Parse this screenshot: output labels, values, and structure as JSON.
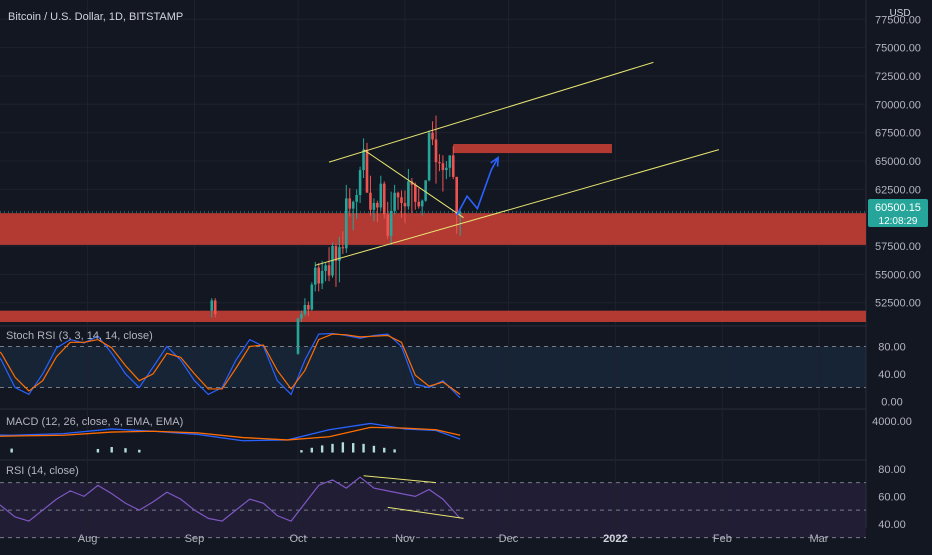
{
  "header": {
    "symbol_title": "Bitcoin / U.S. Dollar, 1D, BITSTAMP"
  },
  "currency_label": "USD",
  "last_price": {
    "value": "60500.15",
    "countdown": "12:08:29",
    "color": "#26a69a"
  },
  "colors": {
    "background": "#131722",
    "grid": "#1e222d",
    "up": "#26a69a",
    "down": "#ef5350",
    "zone": "#b23a33",
    "trendline": "#e8e471",
    "arrow": "#2962ff",
    "k_line": "#2962ff",
    "d_line": "#ff6d00",
    "rsi_line": "#7e57c2",
    "text": "#b2b5be"
  },
  "chart_data": [
    {
      "type": "candlestick",
      "title": "Bitcoin / U.S. Dollar, 1D, BITSTAMP",
      "ylim": [
        50800,
        79200
      ],
      "y_ticks": [
        "77500.00",
        "75000.00",
        "72500.00",
        "70000.00",
        "67500.00",
        "65000.00",
        "62500.00",
        "60000.00",
        "57500.00",
        "55000.00",
        "52500.00"
      ],
      "x_ticks": [
        "Aug",
        "Sep",
        "Oct",
        "Nov",
        "Dec",
        "2022",
        "Feb",
        "Mar"
      ],
      "candles": [
        {
          "date": "2021-09-06",
          "open": 51800,
          "high": 52900,
          "low": 51200,
          "close": 52700
        },
        {
          "date": "2021-09-07",
          "open": 52700,
          "high": 52900,
          "low": 51200,
          "close": 51500
        },
        {
          "date": "2021-10-01",
          "open": 48000,
          "high": 51200,
          "low": 47900,
          "close": 51100
        },
        {
          "date": "2021-10-02",
          "open": 51100,
          "high": 51800,
          "low": 50800,
          "close": 51500
        },
        {
          "date": "2021-10-03",
          "open": 51500,
          "high": 52900,
          "low": 51300,
          "close": 52300
        },
        {
          "date": "2021-10-04",
          "open": 52300,
          "high": 52600,
          "low": 51300,
          "close": 51900
        },
        {
          "date": "2021-10-05",
          "open": 51900,
          "high": 54300,
          "low": 51800,
          "close": 54100
        },
        {
          "date": "2021-10-06",
          "open": 54100,
          "high": 56100,
          "low": 53500,
          "close": 55600
        },
        {
          "date": "2021-10-07",
          "open": 55600,
          "high": 56000,
          "low": 53500,
          "close": 54200
        },
        {
          "date": "2021-10-08",
          "open": 54200,
          "high": 56200,
          "low": 53700,
          "close": 55300
        },
        {
          "date": "2021-10-09",
          "open": 55300,
          "high": 56000,
          "low": 54400,
          "close": 55800
        },
        {
          "date": "2021-10-10",
          "open": 55800,
          "high": 57400,
          "low": 54400,
          "close": 54900
        },
        {
          "date": "2021-10-11",
          "open": 54900,
          "high": 57800,
          "low": 54700,
          "close": 57500
        },
        {
          "date": "2021-10-12",
          "open": 57500,
          "high": 57700,
          "low": 53900,
          "close": 56200
        },
        {
          "date": "2021-10-13",
          "open": 56200,
          "high": 58300,
          "low": 54300,
          "close": 57400
        },
        {
          "date": "2021-10-14",
          "open": 57400,
          "high": 58800,
          "low": 56800,
          "close": 57300
        },
        {
          "date": "2021-10-15",
          "open": 57300,
          "high": 62900,
          "low": 56900,
          "close": 61700
        },
        {
          "date": "2021-10-16",
          "open": 61700,
          "high": 62600,
          "low": 60100,
          "close": 60800
        },
        {
          "date": "2021-10-17",
          "open": 60800,
          "high": 61500,
          "low": 58900,
          "close": 61400
        },
        {
          "date": "2021-10-18",
          "open": 61400,
          "high": 62500,
          "low": 59900,
          "close": 62000
        },
        {
          "date": "2021-10-19",
          "open": 62000,
          "high": 64500,
          "low": 61300,
          "close": 64200
        },
        {
          "date": "2021-10-20",
          "open": 64200,
          "high": 67000,
          "low": 63500,
          "close": 66000
        },
        {
          "date": "2021-10-21",
          "open": 66000,
          "high": 66600,
          "low": 62300,
          "close": 62200
        },
        {
          "date": "2021-10-22",
          "open": 62200,
          "high": 63700,
          "low": 60200,
          "close": 60700
        },
        {
          "date": "2021-10-23",
          "open": 60700,
          "high": 61700,
          "low": 59700,
          "close": 61300
        },
        {
          "date": "2021-10-24",
          "open": 61300,
          "high": 61500,
          "low": 59600,
          "close": 60900
        },
        {
          "date": "2021-10-25",
          "open": 60900,
          "high": 63700,
          "low": 60600,
          "close": 63000
        },
        {
          "date": "2021-10-26",
          "open": 63000,
          "high": 63200,
          "low": 59900,
          "close": 60300
        },
        {
          "date": "2021-10-27",
          "open": 60300,
          "high": 61400,
          "low": 58100,
          "close": 58400
        },
        {
          "date": "2021-10-28",
          "open": 58400,
          "high": 62300,
          "low": 57600,
          "close": 60600
        },
        {
          "date": "2021-10-29",
          "open": 60600,
          "high": 62900,
          "low": 60300,
          "close": 62200
        },
        {
          "date": "2021-10-30",
          "open": 62200,
          "high": 62300,
          "low": 60700,
          "close": 61800
        },
        {
          "date": "2021-10-31",
          "open": 61800,
          "high": 62400,
          "low": 60000,
          "close": 61300
        },
        {
          "date": "2021-11-01",
          "open": 61300,
          "high": 62400,
          "low": 59500,
          "close": 61000
        },
        {
          "date": "2021-11-02",
          "open": 61000,
          "high": 64300,
          "low": 60700,
          "close": 63200
        },
        {
          "date": "2021-11-03",
          "open": 63200,
          "high": 63500,
          "low": 60400,
          "close": 62900
        },
        {
          "date": "2021-11-04",
          "open": 62900,
          "high": 63100,
          "low": 60700,
          "close": 61400
        },
        {
          "date": "2021-11-05",
          "open": 61400,
          "high": 62600,
          "low": 60800,
          "close": 61000
        },
        {
          "date": "2021-11-06",
          "open": 61000,
          "high": 61600,
          "low": 60200,
          "close": 61500
        },
        {
          "date": "2021-11-07",
          "open": 61500,
          "high": 63300,
          "low": 61400,
          "close": 63300
        },
        {
          "date": "2021-11-08",
          "open": 63300,
          "high": 67700,
          "low": 63200,
          "close": 67500
        },
        {
          "date": "2021-11-09",
          "open": 67500,
          "high": 68500,
          "low": 66400,
          "close": 66900
        },
        {
          "date": "2021-11-10",
          "open": 66900,
          "high": 69000,
          "low": 63000,
          "close": 64900
        },
        {
          "date": "2021-11-11",
          "open": 64900,
          "high": 65600,
          "low": 64100,
          "close": 64800
        },
        {
          "date": "2021-11-12",
          "open": 64800,
          "high": 65500,
          "low": 62300,
          "close": 64200
        },
        {
          "date": "2021-11-13",
          "open": 64200,
          "high": 65000,
          "low": 63400,
          "close": 64400
        },
        {
          "date": "2021-11-14",
          "open": 64400,
          "high": 65400,
          "low": 63600,
          "close": 65500
        },
        {
          "date": "2021-11-15",
          "open": 65500,
          "high": 66300,
          "low": 63400,
          "close": 63600
        },
        {
          "date": "2021-11-16",
          "open": 63600,
          "high": 63600,
          "low": 58600,
          "close": 60300
        },
        {
          "date": "2021-11-17",
          "open": 60300,
          "high": 60700,
          "low": 58400,
          "close": 60500
        }
      ],
      "last_price": 60500.15,
      "zones": [
        {
          "y_from": 57600,
          "y_to": 60400,
          "x_from": "2021-06-01",
          "x_to": "2022-04-01"
        },
        {
          "y_from": 50800,
          "y_to": 51800,
          "x_from": "2021-06-01",
          "x_to": "2022-04-01"
        },
        {
          "y_from": 65700,
          "y_to": 66500,
          "x_from": "2021-11-15",
          "x_to": "2021-12-31"
        }
      ],
      "trendlines": [
        {
          "from": [
            "2021-10-06",
            55800
          ],
          "to": [
            "2022-01-31",
            66000
          ]
        },
        {
          "from": [
            "2021-10-10",
            64900
          ],
          "to": [
            "2022-01-12",
            73700
          ]
        },
        {
          "from": [
            "2021-10-20",
            66000
          ],
          "to": [
            "2021-11-18",
            60000
          ]
        }
      ],
      "projection": [
        [
          "2021-11-16",
          60200
        ],
        [
          "2021-11-19",
          61900
        ],
        [
          "2021-11-22",
          60800
        ],
        [
          "2021-11-26",
          64200
        ],
        [
          "2021-11-28",
          65300
        ]
      ]
    },
    {
      "type": "line",
      "title": "Stoch RSI (3, 3, 14, 14, close)",
      "ylim": [
        -4,
        104
      ],
      "y_ticks": [
        "80.00",
        "40.00",
        "0.00"
      ],
      "reference_lines": [
        80,
        20
      ],
      "x": [
        "2021-06-01",
        "2021-06-05",
        "2021-06-09",
        "2021-06-13",
        "2021-06-17",
        "2021-06-21",
        "2021-06-25",
        "2021-06-29",
        "2021-07-03",
        "2021-07-07",
        "2021-07-11",
        "2021-07-15",
        "2021-07-19",
        "2021-07-23",
        "2021-07-27",
        "2021-07-31",
        "2021-08-04",
        "2021-08-08",
        "2021-08-12",
        "2021-08-16",
        "2021-08-20",
        "2021-08-24",
        "2021-08-28",
        "2021-09-01",
        "2021-09-05",
        "2021-09-09",
        "2021-09-13",
        "2021-09-17",
        "2021-09-21",
        "2021-09-25",
        "2021-09-29",
        "2021-10-03",
        "2021-10-07",
        "2021-10-11",
        "2021-10-15",
        "2021-10-19",
        "2021-10-23",
        "2021-10-27",
        "2021-10-31",
        "2021-11-04",
        "2021-11-08",
        "2021-11-12",
        "2021-11-17"
      ],
      "series": [
        {
          "values": [
            80,
            90,
            70,
            30,
            15,
            40,
            70,
            85,
            88,
            60,
            20,
            10,
            40,
            78,
            90,
            85,
            95,
            70,
            40,
            20,
            50,
            80,
            60,
            30,
            10,
            20,
            60,
            90,
            80,
            30,
            10,
            60,
            98,
            99,
            96,
            92,
            96,
            98,
            80,
            25,
            20,
            30,
            5
          ]
        },
        {
          "values": [
            78,
            85,
            76,
            45,
            22,
            30,
            58,
            80,
            86,
            70,
            35,
            15,
            30,
            65,
            86,
            86,
            90,
            78,
            52,
            30,
            40,
            70,
            64,
            40,
            18,
            18,
            48,
            80,
            82,
            45,
            18,
            45,
            90,
            98,
            97,
            94,
            95,
            96,
            86,
            38,
            22,
            28,
            10
          ]
        }
      ]
    },
    {
      "type": "bar",
      "title": "MACD (12, 26, close, 9, EMA, EMA)",
      "ylim": [
        -700,
        4900
      ],
      "y_ticks": [
        "4000.00"
      ],
      "histogram": [
        {
          "date": "2021-06-05",
          "value": 300
        },
        {
          "date": "2021-06-12",
          "value": 600
        },
        {
          "date": "2021-06-19",
          "value": 450
        },
        {
          "date": "2021-07-03",
          "value": 350
        },
        {
          "date": "2021-07-10",
          "value": 500
        },
        {
          "date": "2021-08-04",
          "value": 450
        },
        {
          "date": "2021-08-08",
          "value": 700
        },
        {
          "date": "2021-08-12",
          "value": 550
        },
        {
          "date": "2021-08-16",
          "value": 350
        },
        {
          "date": "2021-10-02",
          "value": 300
        },
        {
          "date": "2021-10-05",
          "value": 600
        },
        {
          "date": "2021-10-08",
          "value": 900
        },
        {
          "date": "2021-10-11",
          "value": 1100
        },
        {
          "date": "2021-10-14",
          "value": 1300
        },
        {
          "date": "2021-10-17",
          "value": 1200
        },
        {
          "date": "2021-10-20",
          "value": 1100
        },
        {
          "date": "2021-10-23",
          "value": 850
        },
        {
          "date": "2021-10-26",
          "value": 600
        },
        {
          "date": "2021-10-29",
          "value": 400
        }
      ],
      "series": [
        {
          "dates": [
            "2021-06-01",
            "2021-06-20",
            "2021-07-10",
            "2021-07-25",
            "2021-08-08",
            "2021-08-20",
            "2021-09-02",
            "2021-09-15",
            "2021-09-28",
            "2021-10-10",
            "2021-10-22",
            "2021-11-01",
            "2021-11-10",
            "2021-11-17"
          ],
          "values": [
            1500,
            2300,
            2200,
            2400,
            3000,
            2700,
            2300,
            1500,
            1600,
            2900,
            3700,
            3000,
            2800,
            1700
          ]
        },
        {
          "dates": [
            "2021-06-01",
            "2021-06-20",
            "2021-07-10",
            "2021-07-25",
            "2021-08-08",
            "2021-08-20",
            "2021-09-02",
            "2021-09-15",
            "2021-09-28",
            "2021-10-10",
            "2021-10-22",
            "2021-11-01",
            "2021-11-10",
            "2021-11-17"
          ],
          "values": [
            1200,
            1900,
            2100,
            2200,
            2600,
            2700,
            2500,
            1900,
            1600,
            2000,
            3200,
            3100,
            2900,
            2200
          ]
        }
      ]
    },
    {
      "type": "line",
      "title": "RSI (14, close)",
      "ylim": [
        37,
        85
      ],
      "y_ticks": [
        "80.00",
        "60.00",
        "40.00"
      ],
      "reference_lines": [
        70,
        50,
        30
      ],
      "x": [
        "2021-06-01",
        "2021-06-05",
        "2021-06-09",
        "2021-06-13",
        "2021-06-17",
        "2021-06-21",
        "2021-06-25",
        "2021-06-29",
        "2021-07-03",
        "2021-07-07",
        "2021-07-11",
        "2021-07-15",
        "2021-07-19",
        "2021-07-23",
        "2021-07-27",
        "2021-07-31",
        "2021-08-04",
        "2021-08-08",
        "2021-08-12",
        "2021-08-16",
        "2021-08-20",
        "2021-08-24",
        "2021-08-28",
        "2021-09-01",
        "2021-09-05",
        "2021-09-09",
        "2021-09-13",
        "2021-09-17",
        "2021-09-21",
        "2021-09-25",
        "2021-09-29",
        "2021-10-03",
        "2021-10-07",
        "2021-10-11",
        "2021-10-15",
        "2021-10-19",
        "2021-10-23",
        "2021-10-27",
        "2021-10-31",
        "2021-11-04",
        "2021-11-08",
        "2021-11-12",
        "2021-11-17"
      ],
      "values": [
        55,
        60,
        52,
        48,
        62,
        57,
        50,
        65,
        60,
        53,
        45,
        42,
        50,
        58,
        64,
        60,
        68,
        62,
        55,
        50,
        56,
        63,
        58,
        50,
        44,
        42,
        50,
        58,
        55,
        46,
        42,
        55,
        68,
        72,
        66,
        74,
        66,
        64,
        62,
        60,
        65,
        58,
        44
      ],
      "divergence_lines": [
        {
          "from": [
            "2021-10-20",
            75
          ],
          "to": [
            "2021-11-10",
            70
          ]
        },
        {
          "from": [
            "2021-10-27",
            52
          ],
          "to": [
            "2021-11-18",
            44
          ]
        }
      ]
    }
  ]
}
